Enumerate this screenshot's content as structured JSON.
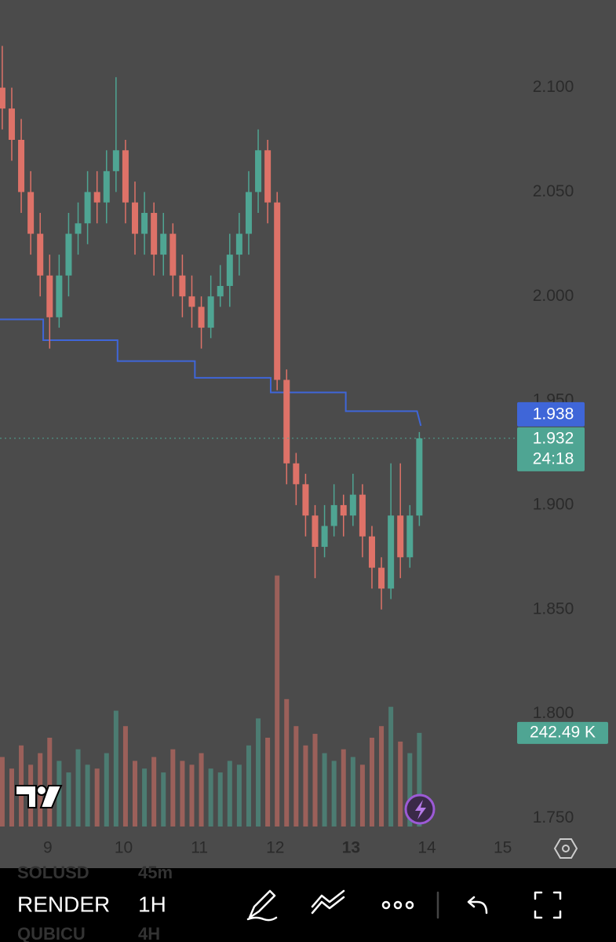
{
  "chart_data": {
    "type": "candlestick",
    "x": [
      8.4,
      8.525,
      8.65,
      8.775,
      8.9,
      9.025,
      9.15,
      9.275,
      9.4,
      9.525,
      9.65,
      9.775,
      9.9,
      10.025,
      10.15,
      10.275,
      10.4,
      10.525,
      10.65,
      10.775,
      10.9,
      11.025,
      11.15,
      11.275,
      11.4,
      11.525,
      11.65,
      11.775,
      11.9,
      12.025,
      12.15,
      12.275,
      12.4,
      12.525,
      12.65,
      12.775,
      12.9,
      13.025,
      13.15,
      13.275,
      13.4,
      13.525,
      13.65,
      13.775,
      13.9
    ],
    "open": [
      2.1,
      2.09,
      2.075,
      2.05,
      2.03,
      2.01,
      1.99,
      2.01,
      2.03,
      2.035,
      2.05,
      2.045,
      2.06,
      2.07,
      2.045,
      2.03,
      2.04,
      2.02,
      2.03,
      2.01,
      2.0,
      1.995,
      1.985,
      2.0,
      2.005,
      2.02,
      2.03,
      2.05,
      2.07,
      2.045,
      1.96,
      1.92,
      1.91,
      1.895,
      1.88,
      1.89,
      1.9,
      1.895,
      1.905,
      1.885,
      1.87,
      1.86,
      1.895,
      1.875,
      1.895
    ],
    "high": [
      2.12,
      2.1,
      2.085,
      2.06,
      2.04,
      2.02,
      2.02,
      2.04,
      2.045,
      2.06,
      2.06,
      2.07,
      2.105,
      2.075,
      2.055,
      2.05,
      2.045,
      2.04,
      2.035,
      2.02,
      2.01,
      2.0,
      2.01,
      2.015,
      2.03,
      2.04,
      2.06,
      2.08,
      2.075,
      2.05,
      1.965,
      1.925,
      1.915,
      1.9,
      1.9,
      1.91,
      1.905,
      1.915,
      1.91,
      1.89,
      1.875,
      1.92,
      1.92,
      1.9,
      1.935
    ],
    "low": [
      2.08,
      2.065,
      2.04,
      2.02,
      2.0,
      1.975,
      1.985,
      2.0,
      2.02,
      2.025,
      2.035,
      2.035,
      2.05,
      2.035,
      2.02,
      2.02,
      2.01,
      2.01,
      2.0,
      1.99,
      1.985,
      1.975,
      1.98,
      1.995,
      1.995,
      2.01,
      2.02,
      2.04,
      2.035,
      1.955,
      1.91,
      1.9,
      1.885,
      1.865,
      1.875,
      1.885,
      1.885,
      1.89,
      1.875,
      1.86,
      1.85,
      1.855,
      1.865,
      1.87,
      1.89
    ],
    "close": [
      2.09,
      2.075,
      2.05,
      2.03,
      2.01,
      1.99,
      2.01,
      2.03,
      2.035,
      2.05,
      2.045,
      2.06,
      2.07,
      2.045,
      2.03,
      2.04,
      2.02,
      2.03,
      2.01,
      2.0,
      1.995,
      1.985,
      2.0,
      2.005,
      2.02,
      2.03,
      2.05,
      2.07,
      2.045,
      1.96,
      1.92,
      1.91,
      1.895,
      1.88,
      1.89,
      1.9,
      1.895,
      1.905,
      1.885,
      1.87,
      1.86,
      1.895,
      1.875,
      1.895,
      1.932
    ],
    "volume": [
      180,
      150,
      210,
      160,
      190,
      230,
      170,
      140,
      200,
      160,
      150,
      190,
      300,
      260,
      170,
      150,
      180,
      140,
      200,
      170,
      160,
      190,
      150,
      140,
      170,
      160,
      210,
      280,
      230,
      650,
      330,
      260,
      210,
      240,
      190,
      170,
      200,
      180,
      160,
      230,
      260,
      310,
      220,
      190,
      242.49
    ],
    "up_color": "#4fa593",
    "down_color": "#de7268",
    "xlim": [
      8.37,
      15.2
    ],
    "ylim": [
      1.743,
      2.142
    ],
    "volume_ylim": [
      0,
      700
    ],
    "xticks": [
      9,
      10,
      11,
      12,
      13,
      14,
      15
    ],
    "bold_xticks": [
      13
    ],
    "yticks": [
      {
        "value": 2.1,
        "label": "2.100"
      },
      {
        "value": 2.05,
        "label": "2.050"
      },
      {
        "value": 2.0,
        "label": "2.000"
      },
      {
        "value": 1.95,
        "label": "1.950"
      },
      {
        "value": 1.9,
        "label": "1.900"
      },
      {
        "value": 1.85,
        "label": "1.850"
      },
      {
        "value": 1.8,
        "label": "1.800"
      },
      {
        "value": 1.75,
        "label": "1.750"
      }
    ],
    "indicator": {
      "color": "#3f66d8",
      "x": [
        8.37,
        8.94,
        8.94,
        9.92,
        9.92,
        10.94,
        10.94,
        11.94,
        11.94,
        12.93,
        12.93,
        13.87,
        13.92
      ],
      "values": [
        1.989,
        1.989,
        1.979,
        1.979,
        1.969,
        1.969,
        1.961,
        1.961,
        1.954,
        1.954,
        1.945,
        1.945,
        1.938
      ]
    },
    "indicator_label": "1.938",
    "price_label": "1.932",
    "countdown": "24:18",
    "volume_label": "242.49 K"
  },
  "toolbar": {
    "symbol": "RENDER",
    "interval": "1H",
    "ghost_symbols": [
      "SOLUSD",
      "QUBICU"
    ],
    "ghost_intervals": [
      "45m",
      "4H"
    ]
  }
}
